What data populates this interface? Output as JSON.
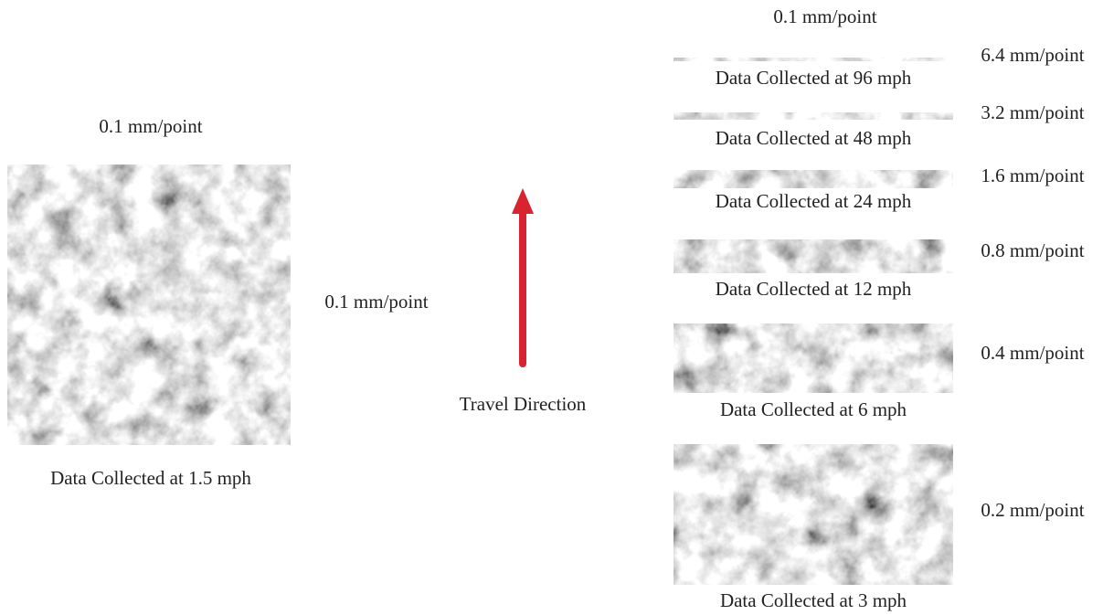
{
  "left_panel": {
    "top_label": "0.1 mm/point",
    "side_label": "0.1 mm/point",
    "caption": "Data Collected at 1.5  mph"
  },
  "center": {
    "label": "Travel Direction"
  },
  "right_panel": {
    "top_label": "0.1 mm/point",
    "items": [
      {
        "scale": "6.4 mm/point",
        "caption": "Data Collected at 96 mph"
      },
      {
        "scale": "3.2 mm/point",
        "caption": "Data Collected at 48 mph"
      },
      {
        "scale": "1.6 mm/point",
        "caption": "Data Collected at 24 mph"
      },
      {
        "scale": "0.8 mm/point",
        "caption": "Data Collected at 12 mph"
      },
      {
        "scale": "0.4 mm/point",
        "caption": "Data Collected at 6 mph"
      },
      {
        "scale": "0.2 mm/point",
        "caption": "Data Collected at 3 mph"
      }
    ]
  }
}
